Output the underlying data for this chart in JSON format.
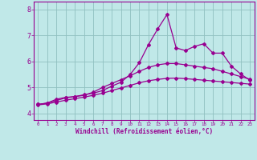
{
  "title": "",
  "xlabel": "Windchill (Refroidissement éolien,°C)",
  "ylabel": "",
  "bg_color": "#c0e8e8",
  "grid_color": "#90c0c0",
  "line_color": "#980090",
  "x_ticks": [
    0,
    1,
    2,
    3,
    4,
    5,
    6,
    7,
    8,
    9,
    10,
    11,
    12,
    13,
    14,
    15,
    16,
    17,
    18,
    19,
    20,
    21,
    22,
    23
  ],
  "y_ticks": [
    4,
    5,
    6,
    7,
    8
  ],
  "xlim": [
    -0.5,
    23.5
  ],
  "ylim": [
    3.75,
    8.3
  ],
  "line1_x": [
    0,
    1,
    2,
    3,
    4,
    5,
    6,
    7,
    8,
    9,
    10,
    11,
    12,
    13,
    14,
    15,
    16,
    17,
    18,
    19,
    20,
    21,
    22,
    23
  ],
  "line1_y": [
    4.35,
    4.4,
    4.55,
    4.62,
    4.65,
    4.72,
    4.78,
    4.88,
    5.05,
    5.2,
    5.5,
    5.95,
    6.65,
    7.25,
    7.8,
    6.52,
    6.42,
    6.58,
    6.68,
    6.32,
    6.32,
    5.82,
    5.52,
    5.28
  ],
  "line2_x": [
    0,
    1,
    2,
    3,
    4,
    5,
    6,
    7,
    8,
    9,
    10,
    11,
    12,
    13,
    14,
    15,
    16,
    17,
    18,
    19,
    20,
    21,
    22,
    23
  ],
  "line2_y": [
    4.35,
    4.4,
    4.5,
    4.6,
    4.65,
    4.7,
    4.82,
    5.0,
    5.15,
    5.3,
    5.45,
    5.62,
    5.77,
    5.87,
    5.92,
    5.92,
    5.87,
    5.82,
    5.77,
    5.72,
    5.62,
    5.52,
    5.42,
    5.32
  ],
  "line3_x": [
    0,
    1,
    2,
    3,
    4,
    5,
    6,
    7,
    8,
    9,
    10,
    11,
    12,
    13,
    14,
    15,
    16,
    17,
    18,
    19,
    20,
    21,
    22,
    23
  ],
  "line3_y": [
    4.33,
    4.37,
    4.44,
    4.51,
    4.57,
    4.63,
    4.7,
    4.78,
    4.88,
    4.98,
    5.08,
    5.18,
    5.26,
    5.31,
    5.35,
    5.36,
    5.34,
    5.31,
    5.28,
    5.25,
    5.22,
    5.19,
    5.16,
    5.13
  ]
}
